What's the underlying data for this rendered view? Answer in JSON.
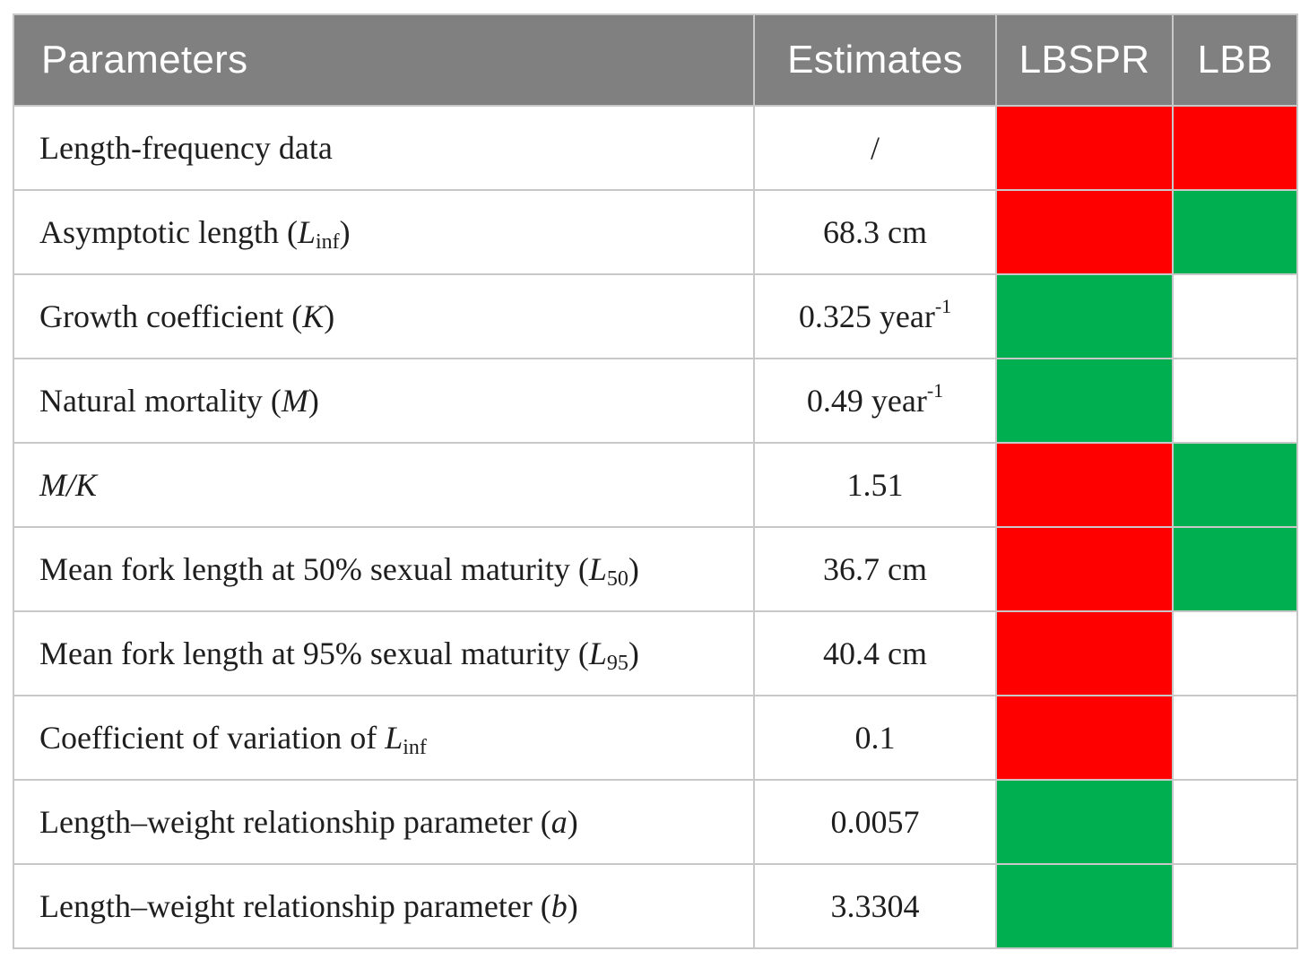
{
  "colors": {
    "header_bg": "#808080",
    "header_text": "#ffffff",
    "red": "#ff0000",
    "green": "#00b050",
    "grid": "#c8c8c8"
  },
  "header": {
    "parameters": "Parameters",
    "estimates": "Estimates",
    "lbspr": "LBSPR",
    "lbb": "LBB"
  },
  "rows": [
    {
      "name": {
        "text": "Length-frequency data"
      },
      "estimate": {
        "value": "/"
      },
      "lbspr": "red",
      "lbb": "red"
    },
    {
      "name": {
        "pre": "Asymptotic length (",
        "sym": "L",
        "sub": "inf",
        "post": ")"
      },
      "estimate": {
        "value": "68.3 cm"
      },
      "lbspr": "red",
      "lbb": "green"
    },
    {
      "name": {
        "pre": "Growth coefficient (",
        "sym": "K",
        "post": ")"
      },
      "estimate": {
        "value": "0.325 year",
        "sup": "-1"
      },
      "lbspr": "green",
      "lbb": "none"
    },
    {
      "name": {
        "pre": "Natural mortality (",
        "sym": "M",
        "post": ")"
      },
      "estimate": {
        "value": "0.49 year",
        "sup": "-1"
      },
      "lbspr": "green",
      "lbb": "none"
    },
    {
      "name": {
        "sym": "M/K"
      },
      "estimate": {
        "value": "1.51"
      },
      "lbspr": "red",
      "lbb": "green"
    },
    {
      "name": {
        "pre": "Mean fork length at 50% sexual maturity (",
        "sym": "L",
        "sub": "50",
        "post": ")"
      },
      "estimate": {
        "value": "36.7 cm"
      },
      "lbspr": "red",
      "lbb": "green"
    },
    {
      "name": {
        "pre": "Mean fork length at 95% sexual maturity (",
        "sym": "L",
        "sub": "95",
        "post": ")"
      },
      "estimate": {
        "value": "40.4 cm"
      },
      "lbspr": "red",
      "lbb": "none"
    },
    {
      "name": {
        "pre": "Coefficient of variation of ",
        "sym": "L",
        "sub": "inf"
      },
      "estimate": {
        "value": "0.1"
      },
      "lbspr": "red",
      "lbb": "none"
    },
    {
      "name": {
        "pre": "Length–weight relationship parameter (",
        "sym": "a",
        "post": ")"
      },
      "estimate": {
        "value": "0.0057"
      },
      "lbspr": "green",
      "lbb": "none"
    },
    {
      "name": {
        "pre": "Length–weight relationship parameter (",
        "sym": "b",
        "post": ")"
      },
      "estimate": {
        "value": "3.3304"
      },
      "lbspr": "green",
      "lbb": "none"
    }
  ]
}
